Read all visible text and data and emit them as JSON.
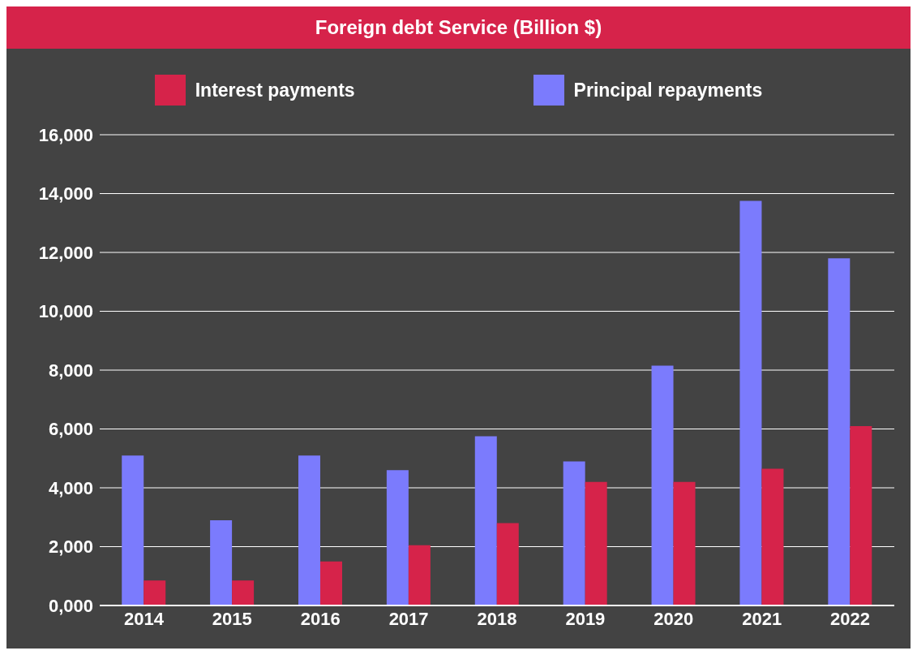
{
  "chart_data": {
    "type": "bar",
    "title": "Foreign debt Service (Billion $)",
    "categories": [
      "2014",
      "2015",
      "2016",
      "2017",
      "2018",
      "2019",
      "2020",
      "2021",
      "2022"
    ],
    "series": [
      {
        "name": "Interest payments",
        "color": "#d6234a",
        "values": [
          850,
          850,
          1500,
          2050,
          2800,
          4200,
          4200,
          4650,
          6100
        ]
      },
      {
        "name": "Principal repayments",
        "color": "#7b7bfd",
        "values": [
          5100,
          2900,
          5100,
          4600,
          5750,
          4900,
          8150,
          13750,
          11800
        ]
      }
    ],
    "ylim": [
      0,
      16000
    ],
    "yticks": [
      {
        "value": 0,
        "label": "0,000"
      },
      {
        "value": 2000,
        "label": "2,000"
      },
      {
        "value": 4000,
        "label": "4,000"
      },
      {
        "value": 6000,
        "label": "6,000"
      },
      {
        "value": 8000,
        "label": "8,000"
      },
      {
        "value": 10000,
        "label": "10,000"
      },
      {
        "value": 12000,
        "label": "12,000"
      },
      {
        "value": 14000,
        "label": "14,000"
      },
      {
        "value": 16000,
        "label": "16,000"
      }
    ],
    "grid": "y",
    "legend": "top"
  }
}
